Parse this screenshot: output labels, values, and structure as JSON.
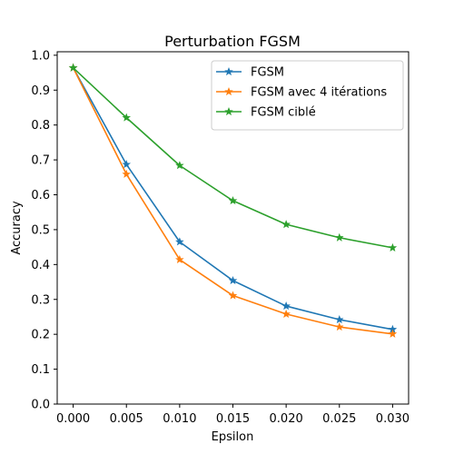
{
  "chart_data": {
    "type": "line",
    "title": "Perturbation FGSM",
    "xlabel": "Epsilon",
    "ylabel": "Accuracy",
    "x": [
      0.0,
      0.005,
      0.01,
      0.015,
      0.02,
      0.025,
      0.03
    ],
    "x_tick_labels": [
      "0.000",
      "0.005",
      "0.010",
      "0.015",
      "0.020",
      "0.025",
      "0.030"
    ],
    "y_ticks": [
      0.0,
      0.1,
      0.2,
      0.3,
      0.4,
      0.5,
      0.6,
      0.7,
      0.8,
      0.9,
      1.0
    ],
    "y_tick_labels": [
      "0.0",
      "0.1",
      "0.2",
      "0.3",
      "0.4",
      "0.5",
      "0.6",
      "0.7",
      "0.8",
      "0.9",
      "1.0"
    ],
    "xlim": [
      -0.0015,
      0.0315
    ],
    "ylim": [
      0.0,
      1.01
    ],
    "grid": false,
    "legend_position": "top-right",
    "marker": "star",
    "series": [
      {
        "name": "FGSM",
        "color": "#1f77b4",
        "values": [
          0.964,
          0.687,
          0.465,
          0.354,
          0.281,
          0.242,
          0.214
        ]
      },
      {
        "name": "FGSM avec 4 itérations",
        "color": "#ff7f0e",
        "values": [
          0.964,
          0.659,
          0.414,
          0.311,
          0.258,
          0.221,
          0.201
        ]
      },
      {
        "name": "FGSM ciblé",
        "color": "#2ca02c",
        "values": [
          0.964,
          0.821,
          0.684,
          0.583,
          0.515,
          0.477,
          0.448
        ]
      }
    ]
  }
}
